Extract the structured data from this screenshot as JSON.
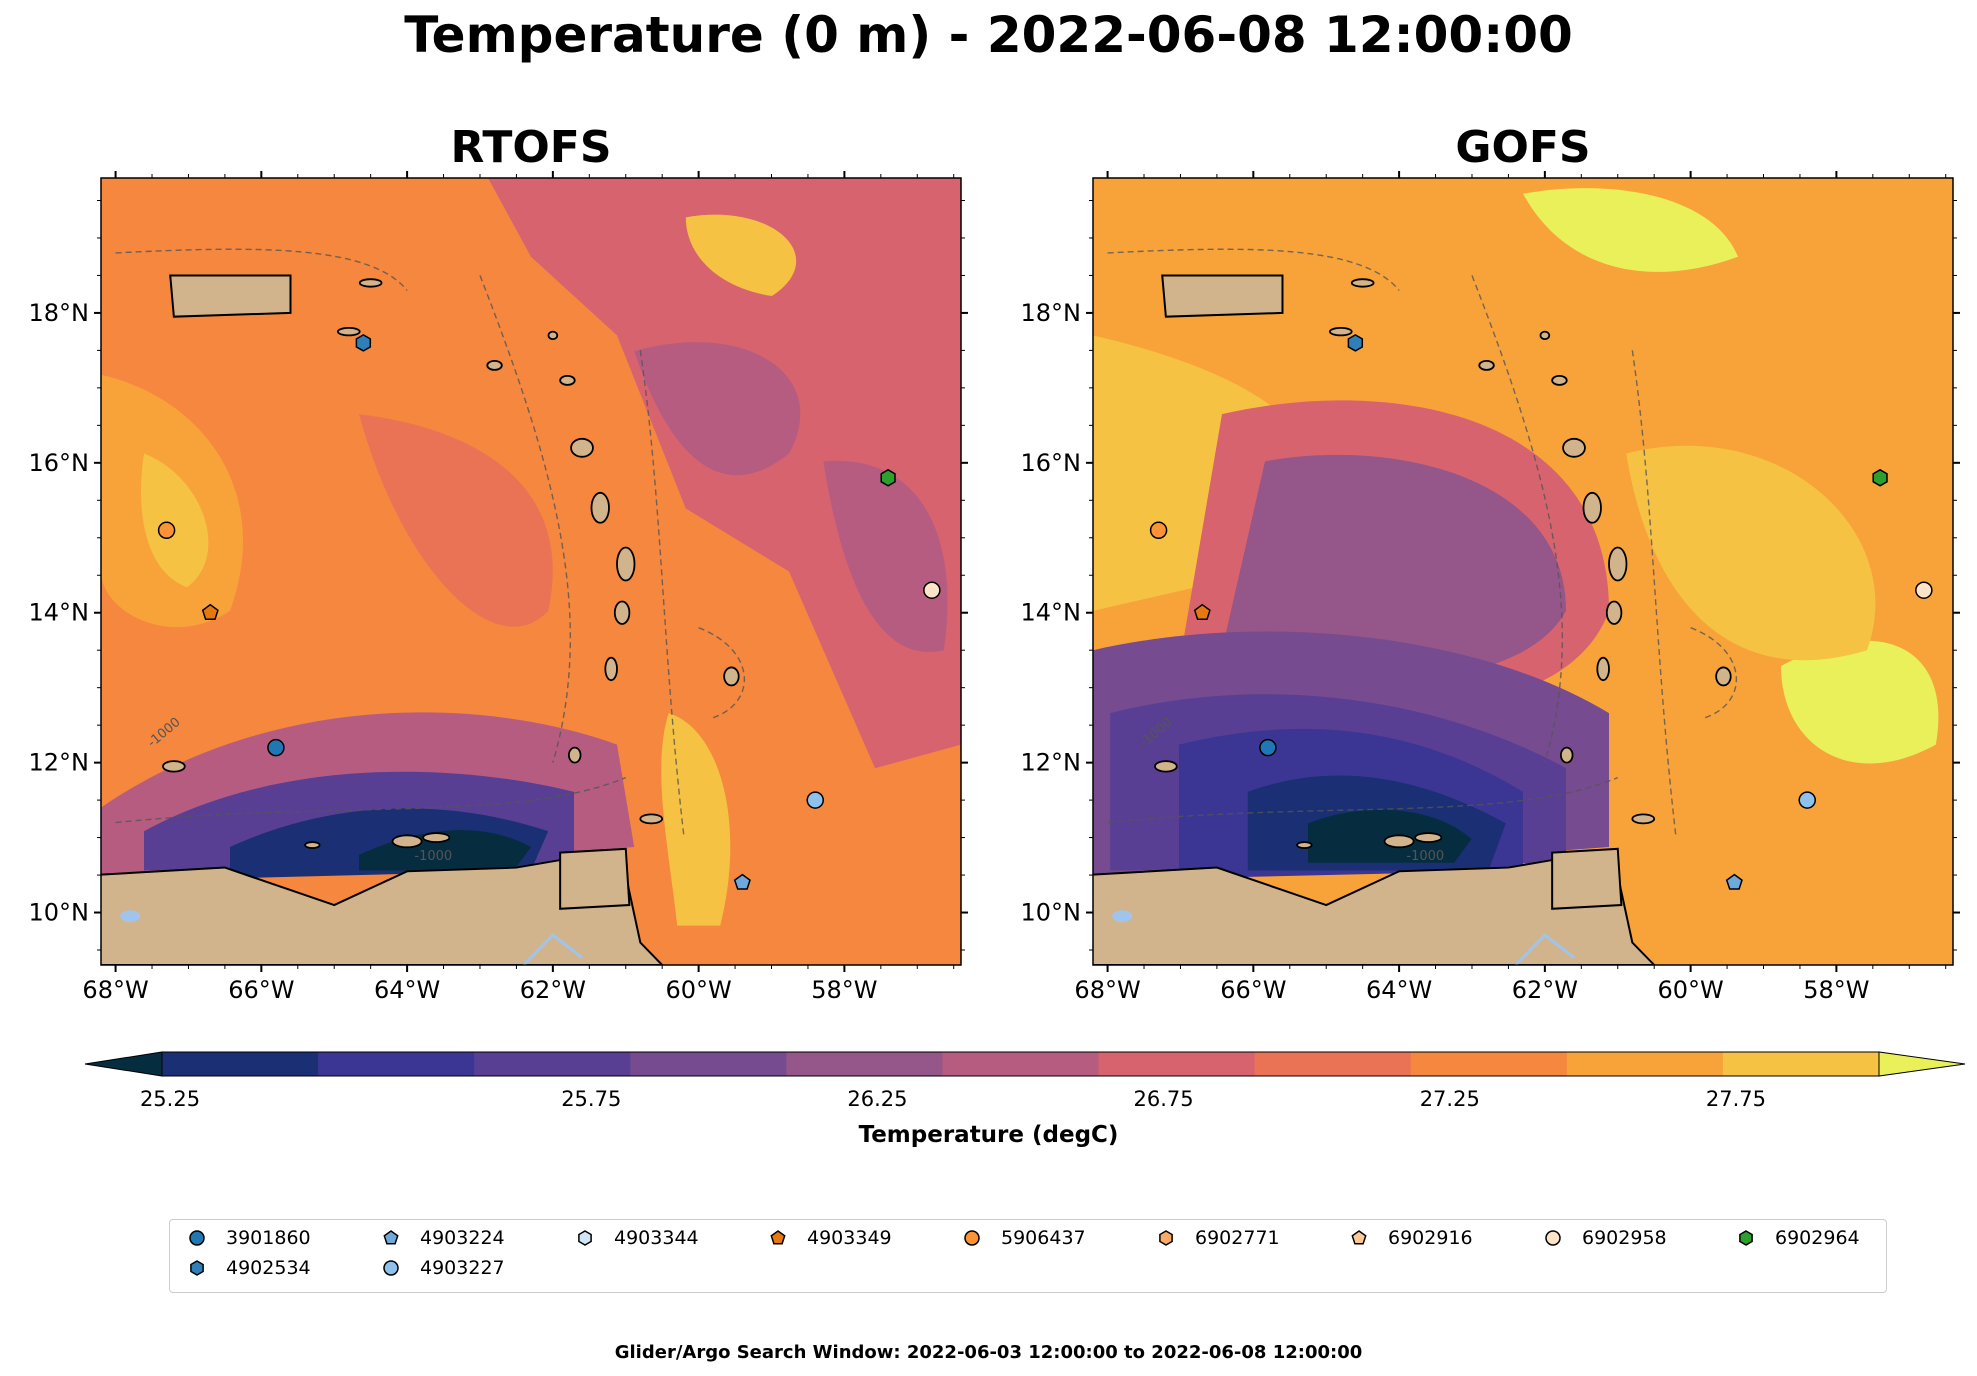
{
  "title": "Temperature (0 m) - 2022-06-08 12:00:00",
  "panels": [
    {
      "title": "RTOFS"
    },
    {
      "title": "GOFS"
    }
  ],
  "map_extent": {
    "lon": [
      -68.2,
      -56.4
    ],
    "lat": [
      9.3,
      19.8
    ]
  },
  "lon_ticks": [
    "68°W",
    "66°W",
    "64°W",
    "62°W",
    "60°W",
    "58°W"
  ],
  "lon_tick_values": [
    -68,
    -66,
    -64,
    -62,
    -60,
    -58
  ],
  "lat_ticks": [
    "10°N",
    "12°N",
    "14°N",
    "16°N",
    "18°N"
  ],
  "lat_tick_values": [
    10,
    12,
    14,
    16,
    18
  ],
  "contour_label": "-1000",
  "colorbar": {
    "label": "Temperature (degC)",
    "ticks": [
      "25.25",
      "25.75",
      "26.25",
      "26.75",
      "27.25",
      "27.75"
    ],
    "tick_values": [
      25.25,
      25.75,
      26.25,
      26.75,
      27.25,
      27.75
    ],
    "min": 25.25,
    "max": 27.75,
    "colors": [
      "#062d3f",
      "#1b2f74",
      "#3b3693",
      "#583f93",
      "#764b8f",
      "#955689",
      "#b65c80",
      "#d7636f",
      "#ea7356",
      "#f5873e",
      "#f7a33a",
      "#f6c243",
      "#e9f05a"
    ]
  },
  "colors": {
    "land": "#d2b48c",
    "lakes": "#a0c4ea",
    "background_sea": "#f0943e"
  },
  "legend": [
    {
      "id": "3901860",
      "marker": "circle",
      "color": "#1f77b4"
    },
    {
      "id": "4902534",
      "marker": "hexagon",
      "color": "#2f7fb8"
    },
    {
      "id": "4903224",
      "marker": "pentagon",
      "color": "#6fa9dc"
    },
    {
      "id": "4903227",
      "marker": "circle",
      "color": "#8fc2eb"
    },
    {
      "id": "4903344",
      "marker": "hexagon",
      "color": "#d2e6f6"
    },
    {
      "id": "4903349",
      "marker": "pentagon",
      "color": "#e5780f"
    },
    {
      "id": "5906437",
      "marker": "circle",
      "color": "#fc9336"
    },
    {
      "id": "6902771",
      "marker": "hexagon",
      "color": "#fda967"
    },
    {
      "id": "6902916",
      "marker": "pentagon",
      "color": "#fdc994"
    },
    {
      "id": "6902958",
      "marker": "circle",
      "color": "#fde3c8"
    },
    {
      "id": "6902964",
      "marker": "hexagon",
      "color": "#2ca02c"
    }
  ],
  "platforms": [
    {
      "id": "3901860",
      "lon": -65.8,
      "lat": 12.2
    },
    {
      "id": "4902534",
      "lon": -64.6,
      "lat": 17.6
    },
    {
      "id": "4903224",
      "lon": -59.4,
      "lat": 10.4
    },
    {
      "id": "4903227",
      "lon": -58.4,
      "lat": 11.5
    },
    {
      "id": "4903349",
      "lon": -66.7,
      "lat": 14.0
    },
    {
      "id": "5906437",
      "lon": -67.3,
      "lat": 15.1
    },
    {
      "id": "6902958",
      "lon": -56.8,
      "lat": 14.3
    },
    {
      "id": "6902964",
      "lon": -57.4,
      "lat": 15.8
    }
  ],
  "footer": "Glider/Argo Search Window: 2022-06-03 12:00:00 to 2022-06-08 12:00:00"
}
